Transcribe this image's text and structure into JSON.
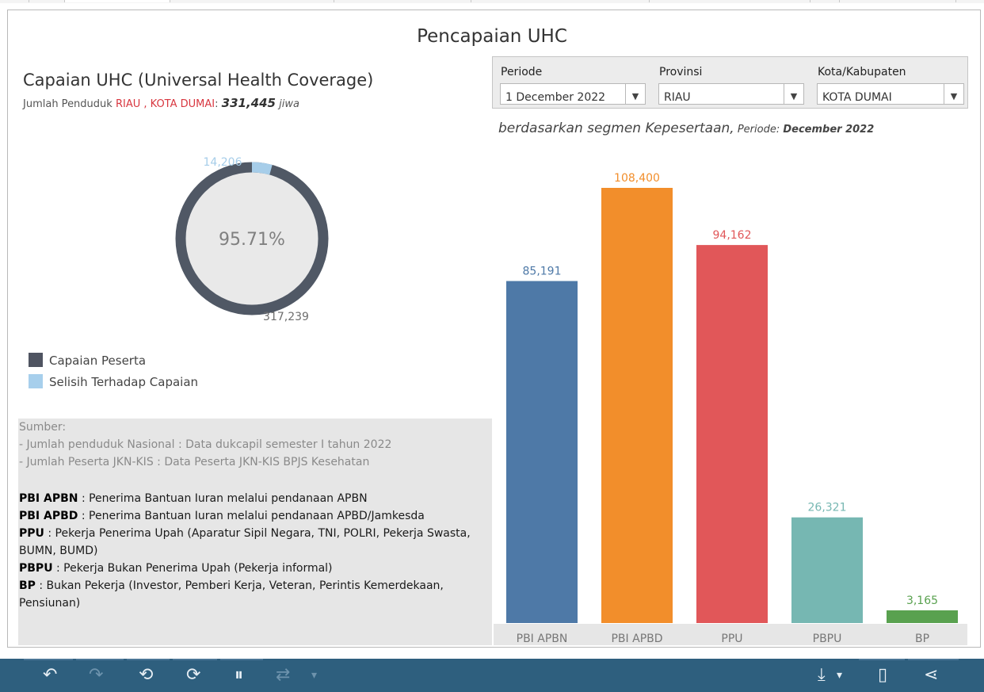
{
  "main_title": "Pencapaian UHC",
  "uhc": {
    "title": "Capaian UHC (Universal Health Coverage)",
    "sub_prefix": "Jumlah Penduduk ",
    "province": "RIAU",
    "sep": " , ",
    "city": "KOTA DUMAI",
    "colon": ":  ",
    "population": "331,445",
    "unit": " jiwa"
  },
  "filters": {
    "periode_label": "Periode",
    "periode_value": "1 December 2022",
    "provinsi_label": "Provinsi",
    "provinsi_value": "RIAU",
    "kota_label": "Kota/Kabupaten",
    "kota_value": "KOTA DUMAI",
    "arrow": "▼"
  },
  "segment_subtitle": {
    "main": "berdasarkan segmen Kepesertaan,",
    "periode_label": " Periode: ",
    "periode_value": "December 2022"
  },
  "donut": {
    "percent_label": "95.71%",
    "achieved": 317239,
    "gap": 14206,
    "achieved_label": "317,239",
    "gap_label": "14,206",
    "colors": {
      "achieved": "#505865",
      "gap": "#a6cde9",
      "center": "#e9e9e9"
    }
  },
  "legend": [
    {
      "label": "Capaian Peserta",
      "color": "#4f5461"
    },
    {
      "label": "Selisih Terhadap Capaian",
      "color": "#a7cfec"
    }
  ],
  "notes": {
    "source_title": "Sumber:",
    "source_1": "- Jumlah penduduk Nasional : Data dukcapil semester I tahun 2022",
    "source_2": "- Jumlah Peserta JKN-KIS : Data Peserta JKN-KIS BPJS Kesehatan",
    "def_1_term": "PBI APBN",
    "def_1_text": " : Penerima Bantuan Iuran melalui pendanaan APBN",
    "def_2_term": "PBI APBD",
    "def_2_text": " : Penerima Bantuan Iuran melalui pendanaan APBD/Jamkesda",
    "def_3_term": "PPU",
    "def_3_text": " : Pekerja Penerima Upah (Aparatur Sipil Negara, TNI, POLRI, Pekerja Swasta,",
    "def_3_text2": "BUMN, BUMD)",
    "def_4_term": "PBPU",
    "def_4_text": " : Pekerja Bukan Penerima Upah (Pekerja informal)",
    "def_5_term": "BP",
    "def_5_text": " : Bukan Pekerja (Investor, Pemberi Kerja, Veteran, Perintis Kemerdekaan,",
    "def_5_text2": "Pensiunan)"
  },
  "chart_data": {
    "type": "bar",
    "categories": [
      "PBI APBN",
      "PBI APBD",
      "PPU",
      "PBPU",
      "BP"
    ],
    "values": [
      85191,
      108400,
      94162,
      26321,
      3165
    ],
    "value_labels": [
      "85,191",
      "108,400",
      "94,162",
      "26,321",
      "3,165"
    ],
    "colors": [
      "#4e79a7",
      "#f28e2b",
      "#e15759",
      "#76b7b2",
      "#59a14f"
    ],
    "title": "",
    "xlabel": "",
    "ylabel": "",
    "ylim": [
      0,
      120000
    ],
    "grid": false,
    "legend": "none"
  },
  "toolbar": {
    "undo": "↶",
    "redo": "↷",
    "revert": "⟲",
    "refresh": "⟳",
    "pause": "⏸",
    "view": "⇄",
    "view_caret": "▾",
    "download": "⤓",
    "download_caret": "▾",
    "device": "▯",
    "share": "⋖"
  }
}
